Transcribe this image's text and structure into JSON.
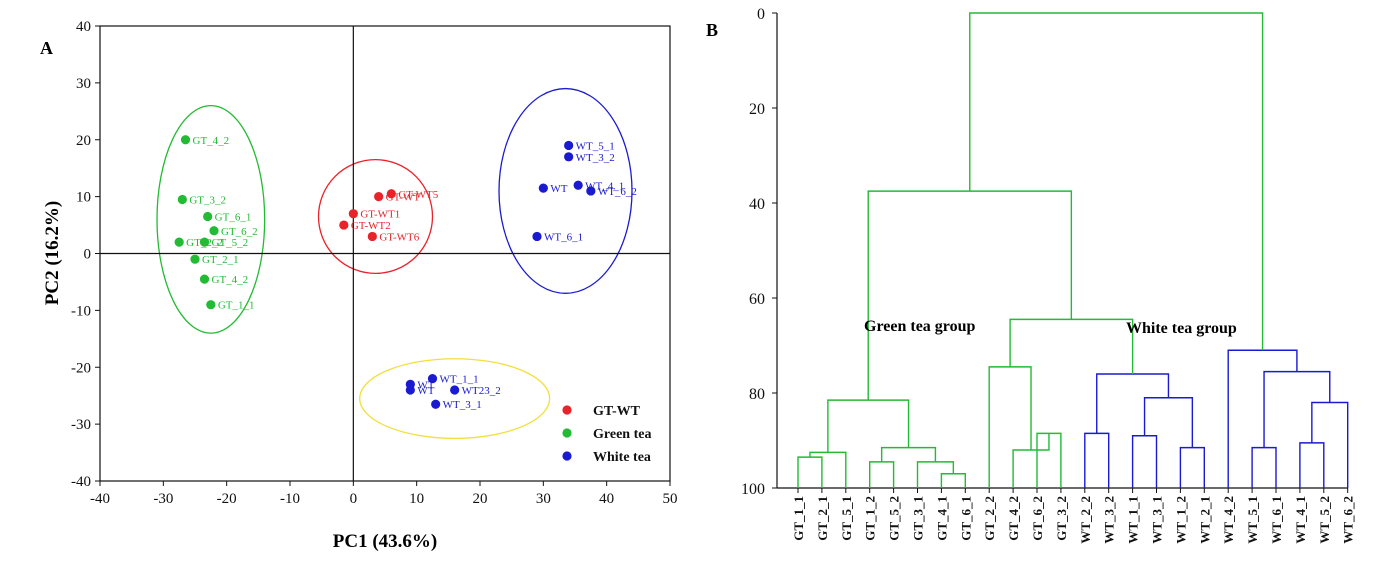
{
  "chart_data": [
    {
      "type": "scatter",
      "panel_label": "A",
      "xlabel": "PC1 (43.6%)",
      "ylabel": "PC2 (16.2%)",
      "xlim": [
        -40,
        50
      ],
      "ylim": [
        -40,
        40
      ],
      "xticks": [
        "-40",
        "-30",
        "-20",
        "-10",
        "0",
        "10",
        "20",
        "30",
        "40",
        "50"
      ],
      "yticks": [
        "40",
        "30",
        "20",
        "10",
        "0",
        "-10",
        "-20",
        "-30",
        "-40"
      ],
      "colors": {
        "GT-WT": "#e8232a",
        "Green tea": "#22bb33",
        "White tea": "#1a1ad0"
      },
      "legend": [
        "GT-WT",
        "Green tea",
        "White tea"
      ],
      "points": [
        {
          "label": "GT_4_2",
          "x": -26.5,
          "y": 20,
          "group": "Green tea"
        },
        {
          "label": "GT_3_2",
          "x": -27,
          "y": 9.5,
          "group": "Green tea"
        },
        {
          "label": "GT_6_1",
          "x": -23,
          "y": 6.5,
          "group": "Green tea"
        },
        {
          "label": "GT_6_2",
          "x": -22,
          "y": 4,
          "group": "Green tea"
        },
        {
          "label": "GT_5_2",
          "x": -23.5,
          "y": 2,
          "group": "Green tea"
        },
        {
          "label": "GT_2_2",
          "x": -27.5,
          "y": 2,
          "group": "Green tea"
        },
        {
          "label": "GT_2_1",
          "x": -25,
          "y": -1,
          "group": "Green tea"
        },
        {
          "label": "GT_4_2",
          "x": -23.5,
          "y": -4.5,
          "group": "Green tea"
        },
        {
          "label": "GT_1_1",
          "x": -22.5,
          "y": -9,
          "group": "Green tea"
        },
        {
          "label": "GT-WT5",
          "x": 6,
          "y": 10.5,
          "group": "GT-WT"
        },
        {
          "label": "GT-WT",
          "x": 4,
          "y": 10,
          "group": "GT-WT"
        },
        {
          "label": "GT-WT1",
          "x": 0,
          "y": 7,
          "group": "GT-WT"
        },
        {
          "label": "GT-WT2",
          "x": -1.5,
          "y": 5,
          "group": "GT-WT"
        },
        {
          "label": "GT-WT6",
          "x": 3,
          "y": 3,
          "group": "GT-WT"
        },
        {
          "label": "WT_5_1",
          "x": 34,
          "y": 19,
          "group": "White tea"
        },
        {
          "label": "WT_3_2",
          "x": 34,
          "y": 17,
          "group": "White tea"
        },
        {
          "label": "WT_4_1",
          "x": 35.5,
          "y": 12,
          "group": "White tea"
        },
        {
          "label": "WT_6_2",
          "x": 37.5,
          "y": 11,
          "group": "White tea"
        },
        {
          "label": "WT",
          "x": 30,
          "y": 11.5,
          "group": "White tea"
        },
        {
          "label": "WT_6_1",
          "x": 29,
          "y": 3,
          "group": "White tea"
        },
        {
          "label": "WT_1_1",
          "x": 12.5,
          "y": -22,
          "group": "White tea"
        },
        {
          "label": "WT",
          "x": 9,
          "y": -23,
          "group": "White tea"
        },
        {
          "label": "WT",
          "x": 9,
          "y": -24,
          "group": "White tea"
        },
        {
          "label": "WT23_2",
          "x": 16,
          "y": -24,
          "group": "White tea"
        },
        {
          "label": "WT_3_1",
          "x": 13,
          "y": -26.5,
          "group": "White tea"
        }
      ],
      "ellipses": [
        {
          "group": "Green tea",
          "cx": -22.5,
          "cy": 6,
          "rx": 8.5,
          "ry": 20
        },
        {
          "group": "GT-WT",
          "cx": 3.5,
          "cy": 6.5,
          "rx": 9,
          "ry": 10
        },
        {
          "group": "White tea",
          "cx": 33.5,
          "cy": 11,
          "rx": 10.5,
          "ry": 18
        },
        {
          "group": "Yellow",
          "cx": 16,
          "cy": -25.5,
          "rx": 15,
          "ry": 7,
          "color": "#f2df3a"
        }
      ]
    },
    {
      "type": "dendrogram",
      "panel_label": "B",
      "ylim": [
        0,
        100
      ],
      "yticks": [
        "0",
        "20",
        "40",
        "60",
        "80",
        "100"
      ],
      "leaves": [
        "GT_1_1",
        "GT_2_1",
        "GT_5_1",
        "GT_1_2",
        "GT_5_2",
        "GT_3_1",
        "GT_4_1",
        "GT_6_1",
        "GT_2_2",
        "GT_4_2",
        "GT_6_2",
        "GT_3_2",
        "WT_2_2",
        "WT_3_2",
        "WT_1_1",
        "WT_3_1",
        "WT_1_2",
        "WT_2_1",
        "WT_4_2",
        "WT_5_1",
        "WT_6_1",
        "WT_4_1",
        "WT_5_2",
        "WT_6_2"
      ],
      "group_labels": {
        "green": "Green tea group",
        "white": "White tea group"
      },
      "colors": {
        "green": "#22bb33",
        "blue": "#1a1ad0"
      },
      "links": [
        {
          "a": 0,
          "b": 1,
          "h": 93.5,
          "c": "green"
        },
        {
          "a": "L0",
          "b": 2,
          "h": 92.5,
          "c": "green"
        },
        {
          "a": 3,
          "b": 4,
          "h": 94.5,
          "c": "green"
        },
        {
          "a": 6,
          "b": 7,
          "h": 97,
          "c": "green"
        },
        {
          "a": 5,
          "b": "L3",
          "h": 94.5,
          "c": "green"
        },
        {
          "a": "L2",
          "b": "L4",
          "h": 91.5,
          "c": "green"
        },
        {
          "a": "L1",
          "b": "L5",
          "h": 81.5,
          "c": "green"
        },
        {
          "a": 10,
          "b": 11,
          "h": 88.5,
          "c": "green"
        },
        {
          "a": 9,
          "b": "L7",
          "h": 92,
          "c": "green"
        },
        {
          "a": 8,
          "b": "L8",
          "h": 74.5,
          "c": "green"
        },
        {
          "a": 12,
          "b": 13,
          "h": 88.5,
          "c": "blue"
        },
        {
          "a": 14,
          "b": 15,
          "h": 89,
          "c": "blue"
        },
        {
          "a": 16,
          "b": 17,
          "h": 91.5,
          "c": "blue"
        },
        {
          "a": "L11",
          "b": "L12",
          "h": 81,
          "c": "blue"
        },
        {
          "a": "L10",
          "b": "L13",
          "h": 76,
          "c": "blue"
        },
        {
          "a": "L9",
          "b": "L14",
          "h": 64.5,
          "c": "green"
        },
        {
          "a": "L6",
          "b": "L15",
          "h": 37.5,
          "c": "green"
        },
        {
          "a": 19,
          "b": 20,
          "h": 91.5,
          "c": "blue"
        },
        {
          "a": 21,
          "b": 22,
          "h": 90.5,
          "c": "blue"
        },
        {
          "a": "L18",
          "b": 23,
          "h": 82,
          "c": "blue"
        },
        {
          "a": "L17",
          "b": "L19",
          "h": 75.5,
          "c": "blue"
        },
        {
          "a": 18,
          "b": "L20",
          "h": 71,
          "c": "blue"
        },
        {
          "a": "L16",
          "b": "L21",
          "h": 0,
          "c": "green"
        }
      ]
    }
  ]
}
